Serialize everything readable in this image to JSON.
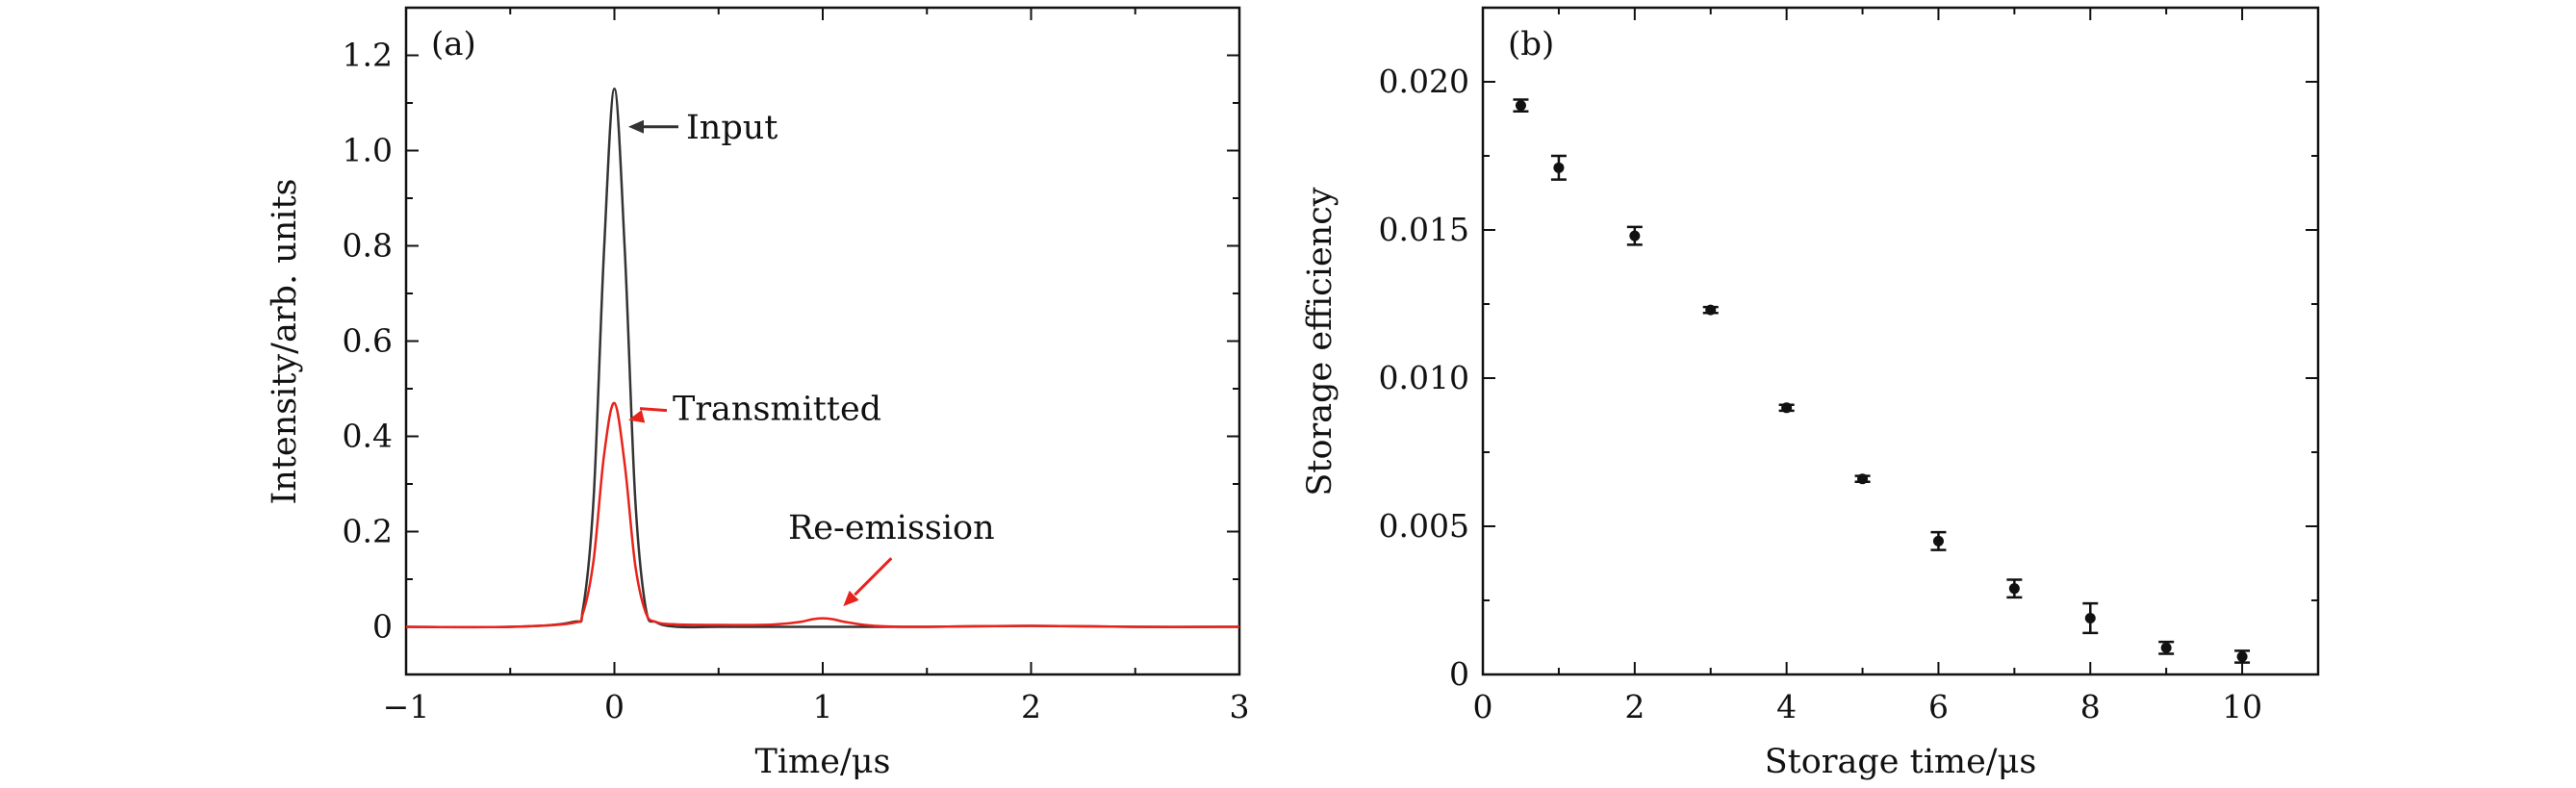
{
  "chart_data": [
    {
      "panel": "(a)",
      "type": "line",
      "xlabel": "Time/μs",
      "ylabel": "Intensity/arb. units",
      "xlim": [
        -1,
        3
      ],
      "ylim": [
        -0.1,
        1.3
      ],
      "xticks": [
        "−1",
        "0",
        "1",
        "2",
        "3"
      ],
      "yticks": [
        "0",
        "0.2",
        "0.4",
        "0.6",
        "0.8",
        "1.0",
        "1.2"
      ],
      "series": [
        {
          "name": "Input",
          "color": "#333333",
          "x": [
            -1,
            -0.5,
            -0.2,
            -0.15,
            -0.1,
            -0.05,
            0,
            0.05,
            0.1,
            0.15,
            0.2,
            0.3,
            0.5,
            0.8,
            1.0,
            1.2,
            1.5,
            2.0,
            2.5,
            3.0
          ],
          "y": [
            0,
            0,
            0.01,
            0.04,
            0.27,
            0.79,
            1.13,
            0.79,
            0.27,
            0.04,
            0.01,
            0,
            0,
            0,
            0,
            0,
            0,
            0.002,
            0,
            0
          ]
        },
        {
          "name": "Transmitted",
          "color": "#e8231b",
          "x": [
            -1,
            -0.5,
            -0.2,
            -0.15,
            -0.1,
            -0.05,
            0,
            0.05,
            0.1,
            0.15,
            0.2,
            0.3,
            0.5,
            0.7,
            0.8,
            0.9,
            0.95,
            1.0,
            1.05,
            1.1,
            1.2,
            1.3,
            1.5,
            2.0,
            2.5,
            3.0
          ],
          "y": [
            0,
            0,
            0.008,
            0.03,
            0.14,
            0.36,
            0.47,
            0.34,
            0.13,
            0.03,
            0.01,
            0.005,
            0.004,
            0.004,
            0.006,
            0.011,
            0.016,
            0.018,
            0.016,
            0.011,
            0.004,
            0.001,
            0,
            0.002,
            0,
            0
          ]
        }
      ],
      "annotations": [
        {
          "text": "Input",
          "color": "#333333",
          "point": [
            0.03,
            1.05
          ]
        },
        {
          "text": "Transmitted",
          "color": "#e8231b",
          "point": [
            0.03,
            0.43
          ]
        },
        {
          "text": "Re-emission",
          "color": "#e8231b",
          "point": [
            1.08,
            0.035
          ]
        }
      ]
    },
    {
      "panel": "(b)",
      "type": "scatter",
      "xlabel": "Storage time/μs",
      "ylabel": "Storage efficiency",
      "xlim": [
        0,
        11
      ],
      "ylim": [
        0,
        0.0225
      ],
      "xticks": [
        "0",
        "2",
        "4",
        "6",
        "8",
        "10"
      ],
      "yticks": [
        "0",
        "0.005",
        "0.010",
        "0.015",
        "0.020"
      ],
      "series": [
        {
          "name": "",
          "color": "#111111",
          "x": [
            0.5,
            1,
            2,
            3,
            4,
            5,
            6,
            7,
            8,
            9,
            10
          ],
          "y": [
            0.0192,
            0.0171,
            0.0148,
            0.0123,
            0.009,
            0.0066,
            0.0045,
            0.0029,
            0.0019,
            0.0009,
            0.0006
          ],
          "err": [
            0.0002,
            0.0004,
            0.0003,
            0.0001,
            0.0001,
            0.0001,
            0.0003,
            0.0003,
            0.0005,
            0.0002,
            0.0002
          ]
        }
      ]
    }
  ]
}
